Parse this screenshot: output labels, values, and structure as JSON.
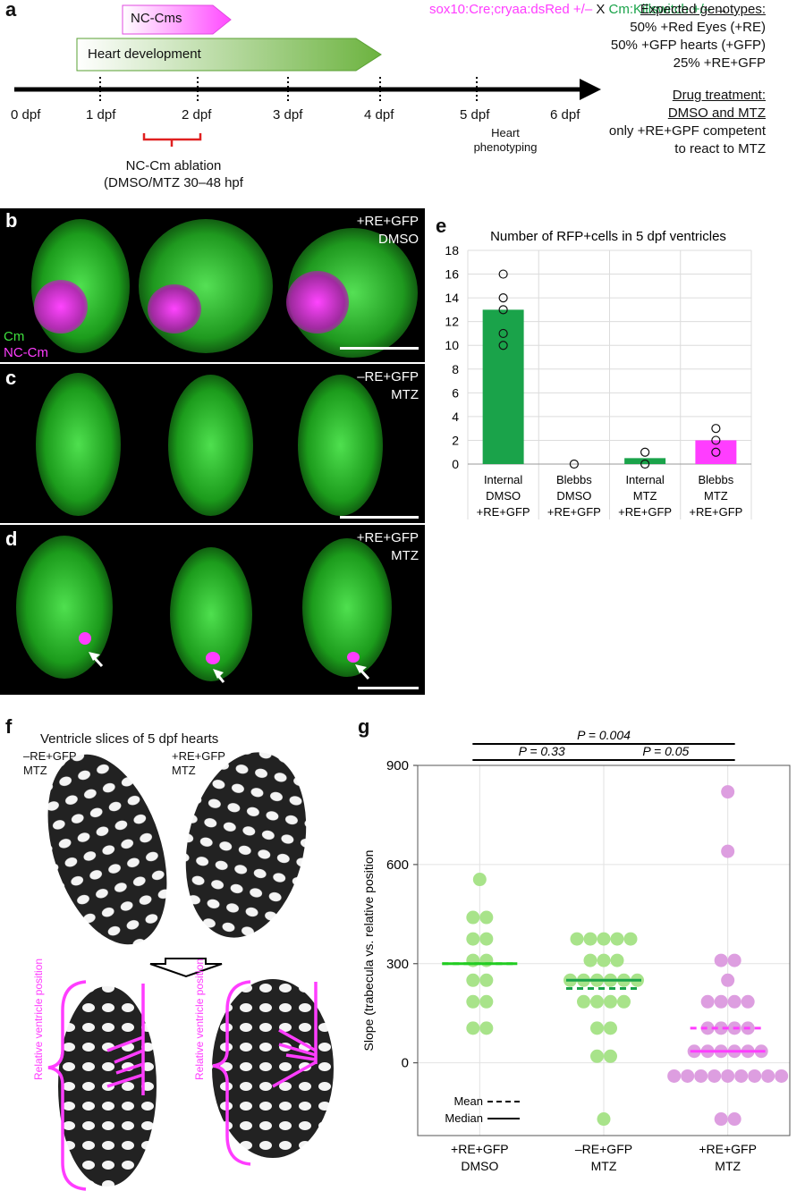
{
  "panel_a": {
    "label": "a",
    "nc_cms": "NC-Cms",
    "heart_dev": "Heart development",
    "days": [
      "0 dpf",
      "1 dpf",
      "2 dpf",
      "3 dpf",
      "4 dpf",
      "5 dpf",
      "6 dpf"
    ],
    "heart_phenotyping": [
      "Heart",
      "phenotyping"
    ],
    "ablation": [
      "NC-Cm ablation",
      "(DMSO/MTZ 30–48 hpf"
    ],
    "cross_pink": "sox10:Cre;cryaa:dsRed +/–",
    "cross_x": " X ",
    "cross_green": "Cm:Killswitch +/–",
    "arrow_sym": " → ",
    "expected_title": "Expected genotypes:",
    "expected": [
      "50% +Red Eyes (+RE)",
      "50% +GFP hearts (+GFP)",
      "25% +RE+GFP"
    ],
    "drug_title": "Drug treatment:",
    "drug_sub": "DMSO and MTZ",
    "drug_lines": [
      "only +RE+GPF competent",
      "to react to MTZ"
    ]
  },
  "panel_b": {
    "label": "b",
    "cond": [
      "+RE+GFP",
      "DMSO"
    ],
    "cm": "Cm",
    "nccm": "NC-Cm"
  },
  "panel_c": {
    "label": "c",
    "cond": [
      "–RE+GFP",
      "MTZ"
    ]
  },
  "panel_d": {
    "label": "d",
    "cond": [
      "+RE+GFP",
      "MTZ"
    ]
  },
  "panel_e": {
    "label": "e"
  },
  "panel_f": {
    "label": "f",
    "title": "Ventricle slices of 5 dpf hearts",
    "left_cond": [
      "–RE+GFP",
      "MTZ"
    ],
    "right_cond": [
      "+RE+GFP",
      "MTZ"
    ],
    "rel_pos": "Relative ventricle position"
  },
  "panel_g": {
    "label": "g"
  },
  "colors": {
    "green": "#1aa34a",
    "magenta": "#ff3dff",
    "light_green": "#a8e38a",
    "light_magenta": "#dd9ee0"
  },
  "chart_data": [
    {
      "type": "bar",
      "title": "Number of RFP+cells in 5 dpf ventricles",
      "categories": [
        [
          "Internal",
          "DMSO",
          "+RE+GFP"
        ],
        [
          "Blebbs",
          "DMSO",
          "+RE+GFP"
        ],
        [
          "Internal",
          "MTZ",
          "+RE+GFP"
        ],
        [
          "Blebbs",
          "MTZ",
          "+RE+GFP"
        ]
      ],
      "values": [
        13,
        0,
        0.5,
        2
      ],
      "bar_colors": [
        "#1aa34a",
        "#1aa34a",
        "#1aa34a",
        "#ff3dff"
      ],
      "points": [
        [
          16,
          14,
          13,
          11,
          10
        ],
        [
          0
        ],
        [
          1,
          0
        ],
        [
          3,
          2,
          1
        ]
      ],
      "ylim": [
        0,
        18
      ],
      "yticks": [
        0,
        2,
        4,
        6,
        8,
        10,
        12,
        14,
        16,
        18
      ],
      "grid": true
    },
    {
      "type": "scatter",
      "ylabel": "Slope (trabecula vs. relative position",
      "ylim": [
        -220,
        900
      ],
      "yticks": [
        0,
        300,
        600,
        900
      ],
      "categories": [
        [
          "+RE+GFP",
          "DMSO"
        ],
        [
          "–RE+GFP",
          "MTZ"
        ],
        [
          "+RE+GFP",
          "MTZ"
        ]
      ],
      "series": [
        {
          "color": "#a8e38a",
          "line_color": "#22cc22",
          "mean": 300,
          "median": 300,
          "values": [
            555,
            440,
            440,
            375,
            375,
            310,
            310,
            250,
            250,
            185,
            185,
            105,
            105
          ]
        },
        {
          "color": "#a8e38a",
          "line_color": "#1aa34a",
          "mean": 225,
          "median": 250,
          "values": [
            375,
            375,
            375,
            375,
            375,
            310,
            310,
            310,
            250,
            250,
            250,
            250,
            250,
            250,
            185,
            185,
            185,
            185,
            105,
            105,
            20,
            20,
            -170
          ]
        },
        {
          "color": "#dd9ee0",
          "line_color": "#ff3dff",
          "mean": 105,
          "median": 35,
          "values": [
            820,
            640,
            310,
            310,
            250,
            185,
            185,
            185,
            185,
            105,
            105,
            105,
            105,
            35,
            35,
            35,
            35,
            35,
            35,
            -40,
            -40,
            -40,
            -40,
            -40,
            -40,
            -40,
            -40,
            -40,
            -170,
            -170
          ]
        }
      ],
      "pvalues": [
        {
          "from": 0,
          "to": 2,
          "text": "P = 0.004"
        },
        {
          "from": 0,
          "to": 1,
          "text": "P = 0.33"
        },
        {
          "from": 1,
          "to": 2,
          "text": "P = 0.05"
        }
      ],
      "legend": {
        "mean": "Mean",
        "median": "Median"
      },
      "grid": true
    }
  ]
}
